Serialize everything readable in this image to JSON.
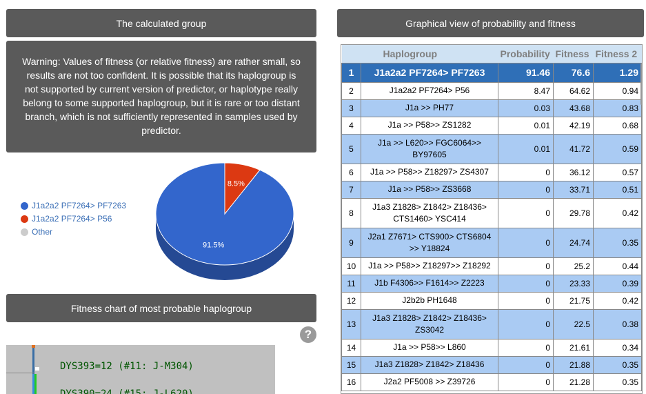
{
  "calc_header": "The calculated group",
  "graph_header": "Graphical view of probability and fitness",
  "fitness_header": "Fitness chart of most probable haplogroup",
  "warning": "Warning: Values of fitness (or relative fitness) are rather small, so results are not too confident. It is possible that its haplogroup is not supported by current version of predictor, or haplotype really belong to some supported haplogroup, but it is rare or too distant branch, which is not sufficiently represented in samples used by predictor.",
  "legend": [
    {
      "label": "J1a2a2 PF7264> PF7263",
      "color": "#3366cc"
    },
    {
      "label": "J1a2a2 PF7264> P56",
      "color": "#dc3912"
    },
    {
      "label": "Other",
      "color": "#cccccc"
    }
  ],
  "chart_data": {
    "type": "pie",
    "slices": [
      {
        "label": "J1a2a2 PF7264> PF7263",
        "value": 91.5,
        "text": "91.5%",
        "color": "#3366cc"
      },
      {
        "label": "J1a2a2 PF7264> P56",
        "value": 8.5,
        "text": "8.5%",
        "color": "#dc3912"
      }
    ]
  },
  "help_icon": "?",
  "fitness_chart_lines": [
    "DYS393=12 (#11: J-M304)",
    "DYS390=24 (#15: J-L620)"
  ],
  "table": {
    "headers": [
      "",
      "Haplogroup",
      "Probability",
      "Fitness",
      "Fitness 2"
    ],
    "rows": [
      {
        "idx": "1",
        "hg": "J1a2a2 PF7264> PF7263",
        "prob": "91.46",
        "fit": "76.6",
        "fit2": "1.29",
        "sel": true
      },
      {
        "idx": "2",
        "hg": "J1a2a2 PF7264> P56",
        "prob": "8.47",
        "fit": "64.62",
        "fit2": "0.94"
      },
      {
        "idx": "3",
        "hg": "J1a >> PH77",
        "prob": "0.03",
        "fit": "43.68",
        "fit2": "0.83"
      },
      {
        "idx": "4",
        "hg": "J1a >> P58>> ZS1282",
        "prob": "0.01",
        "fit": "42.19",
        "fit2": "0.68"
      },
      {
        "idx": "5",
        "hg": "J1a >> L620>> FGC6064>> BY97605",
        "prob": "0.01",
        "fit": "41.72",
        "fit2": "0.59",
        "tall": true
      },
      {
        "idx": "6",
        "hg": "J1a >> P58>> Z18297> ZS4307",
        "prob": "0",
        "fit": "36.12",
        "fit2": "0.57"
      },
      {
        "idx": "7",
        "hg": "J1a >> P58>> ZS3668",
        "prob": "0",
        "fit": "33.71",
        "fit2": "0.51"
      },
      {
        "idx": "8",
        "hg": "J1a3 Z1828> Z1842> Z18436> CTS1460> YSC414",
        "prob": "0",
        "fit": "29.78",
        "fit2": "0.42",
        "tall": true
      },
      {
        "idx": "9",
        "hg": "J2a1 Z7671> CTS900> CTS6804 >> Y18824",
        "prob": "0",
        "fit": "24.74",
        "fit2": "0.35",
        "tall": true
      },
      {
        "idx": "10",
        "hg": "J1a >> P58>> Z18297>> Z18292",
        "prob": "0",
        "fit": "25.2",
        "fit2": "0.44"
      },
      {
        "idx": "11",
        "hg": "J1b F4306>> F1614>> Z2223",
        "prob": "0",
        "fit": "23.33",
        "fit2": "0.39"
      },
      {
        "idx": "12",
        "hg": "J2b2b PH1648",
        "prob": "0",
        "fit": "21.75",
        "fit2": "0.42"
      },
      {
        "idx": "13",
        "hg": "J1a3 Z1828> Z1842> Z18436> ZS3042",
        "prob": "0",
        "fit": "22.5",
        "fit2": "0.38",
        "tall": true
      },
      {
        "idx": "14",
        "hg": "J1a >> P58>> L860",
        "prob": "0",
        "fit": "21.61",
        "fit2": "0.34"
      },
      {
        "idx": "15",
        "hg": "J1a3 Z1828> Z1842> Z18436",
        "prob": "0",
        "fit": "21.88",
        "fit2": "0.35"
      },
      {
        "idx": "16",
        "hg": "J2a2 PF5008 >> Z39726",
        "prob": "0",
        "fit": "21.28",
        "fit2": "0.35"
      }
    ]
  }
}
